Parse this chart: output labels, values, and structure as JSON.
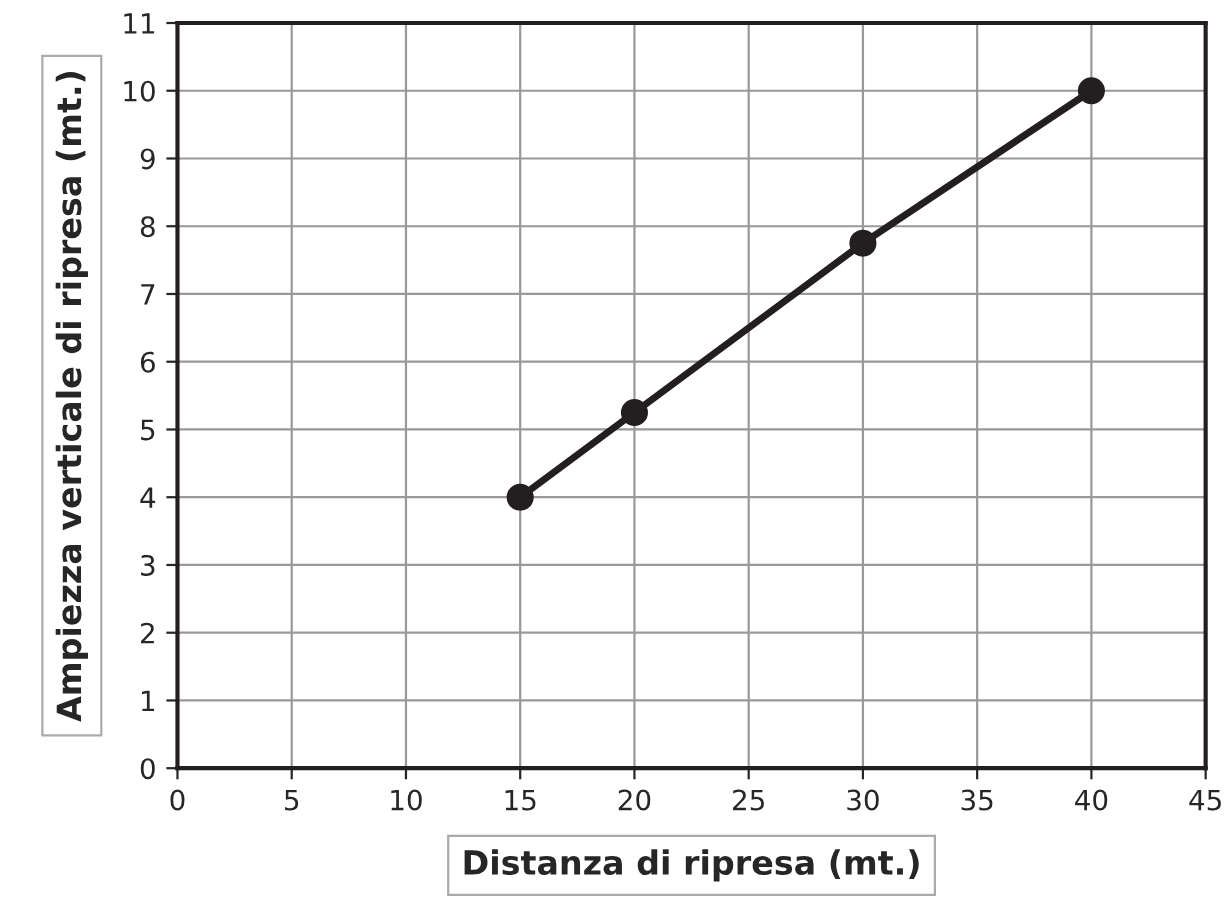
{
  "chart_data": {
    "type": "line",
    "xlabel": "Distanza di ripresa (mt.)",
    "ylabel": "Ampiezza verticale di ripresa (mt.)",
    "x": [
      15,
      20,
      30,
      40
    ],
    "series": [
      {
        "color": "#231f20",
        "values": [
          4.0,
          5.25,
          7.75,
          10.0
        ]
      }
    ],
    "xlim": [
      0,
      45
    ],
    "xticks": [
      0,
      5,
      10,
      15,
      20,
      25,
      30,
      35,
      40,
      45
    ],
    "ylim": [
      0,
      11
    ],
    "yticks": [
      0,
      1,
      2,
      3,
      4,
      5,
      6,
      7,
      8,
      9,
      10,
      11
    ],
    "grid": true,
    "marker": "circle",
    "line_style": "solid"
  }
}
